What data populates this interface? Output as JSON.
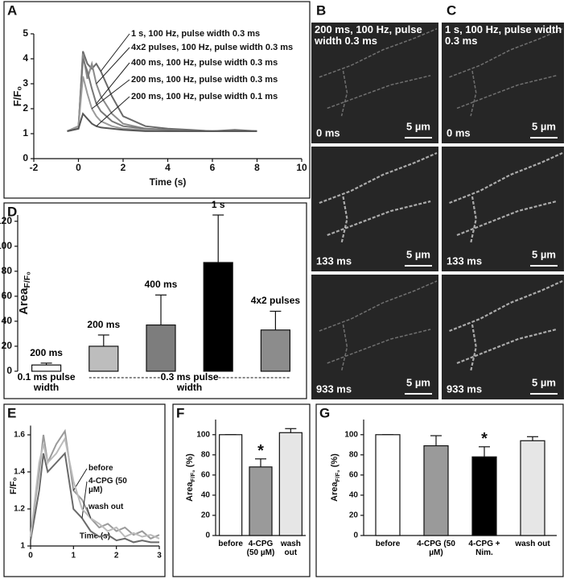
{
  "chart_data": [
    {
      "type": "line",
      "panel_label": "A",
      "xlabel": "Time (s)",
      "ylabel": "F/F₀",
      "xlim": [
        -2,
        10
      ],
      "xticks": [
        -2,
        0,
        2,
        4,
        6,
        8,
        10
      ],
      "ylim": [
        0,
        5
      ],
      "yticks": [
        0,
        1,
        2,
        3,
        4,
        5
      ],
      "x": [
        -0.5,
        0,
        0.2,
        0.4,
        0.6,
        0.8,
        1,
        1.5,
        2,
        3,
        4,
        5,
        6,
        7,
        8
      ],
      "series": [
        {
          "name": "1 s, 100 Hz, pulse width 0.3 ms",
          "color": "#6a6a6a",
          "values": [
            1.1,
            1.2,
            4.3,
            3.8,
            3.6,
            3.8,
            3.5,
            2.5,
            1.7,
            1.3,
            1.2,
            1.15,
            1.1,
            1.15,
            1.1
          ]
        },
        {
          "name": "4x2 pulses, 100 Hz, pulse width 0.3 ms",
          "color": "#8a8a8a",
          "values": [
            1.1,
            1.2,
            4.2,
            3.2,
            3.8,
            3.0,
            2.5,
            1.8,
            1.4,
            1.2,
            1.15,
            1.1,
            1.1,
            1.1,
            1.1
          ]
        },
        {
          "name": "400 ms, 100 Hz, pulse width 0.3 ms",
          "color": "#777777",
          "values": [
            1.1,
            1.3,
            4.0,
            3.5,
            2.8,
            2.2,
            1.9,
            1.5,
            1.3,
            1.2,
            1.15,
            1.1,
            1.1,
            1.1,
            1.1
          ]
        },
        {
          "name": "200 ms, 100 Hz, pulse width 0.3 ms",
          "color": "#9a9a9a",
          "values": [
            1.1,
            1.3,
            3.3,
            2.6,
            2.0,
            1.7,
            1.5,
            1.3,
            1.2,
            1.15,
            1.1,
            1.1,
            1.1,
            1.1,
            1.1
          ]
        },
        {
          "name": "200 ms, 100 Hz, pulse width 0.1 ms",
          "color": "#555555",
          "values": [
            1.1,
            1.2,
            1.8,
            1.6,
            1.4,
            1.3,
            1.25,
            1.2,
            1.15,
            1.1,
            1.1,
            1.1,
            1.1,
            1.1,
            1.1
          ]
        }
      ]
    },
    {
      "type": "bar",
      "panel_label": "D",
      "ylabel": "Area",
      "ylabel_sub": "F/F₀",
      "ylim": [
        0,
        125
      ],
      "yticks": [
        0,
        20,
        40,
        60,
        80,
        100,
        120
      ],
      "categories": [
        "200 ms",
        "200 ms",
        "400 ms",
        "1 s",
        "4x2 pulses"
      ],
      "values": [
        5,
        20,
        37,
        87,
        33
      ],
      "errors": [
        1.5,
        9,
        24,
        38,
        15
      ],
      "colors": [
        "#ffffff",
        "#bdbdbd",
        "#7d7d7d",
        "#000000",
        "#8c8c8c"
      ],
      "group_labels": [
        "0.1 ms pulse width",
        "0.3 ms pulse width"
      ]
    },
    {
      "type": "line",
      "panel_label": "E",
      "xlabel": "Time (s)",
      "ylabel": "F/F₀",
      "xlim": [
        0,
        3
      ],
      "xticks": [
        0,
        1,
        2,
        3
      ],
      "ylim": [
        1,
        1.65
      ],
      "yticks": [
        1,
        1.2,
        1.4,
        1.6
      ],
      "x": [
        0,
        0.2,
        0.3,
        0.4,
        0.6,
        0.8,
        1,
        1.2,
        1.4,
        1.6,
        1.8,
        2,
        2.2,
        2.4,
        2.6,
        2.8,
        3
      ],
      "series": [
        {
          "name": "before",
          "color": "#9a9a9a",
          "values": [
            1.05,
            1.4,
            1.6,
            1.45,
            1.55,
            1.62,
            1.3,
            1.25,
            1.15,
            1.1,
            1.12,
            1.08,
            1.1,
            1.06,
            1.08,
            1.04,
            1.06
          ]
        },
        {
          "name": "4-CPG (50 µM)",
          "color": "#6a6a6a",
          "values": [
            1.03,
            1.3,
            1.5,
            1.4,
            1.45,
            1.5,
            1.2,
            1.15,
            1.08,
            1.05,
            1.06,
            1.03,
            1.04,
            1.02,
            1.03,
            1.02,
            1.02
          ]
        },
        {
          "name": "wash out",
          "color": "#bbbbbb",
          "values": [
            1.05,
            1.45,
            1.55,
            1.45,
            1.5,
            1.58,
            1.35,
            1.2,
            1.15,
            1.12,
            1.08,
            1.1,
            1.05,
            1.07,
            1.05,
            1.06,
            1.04
          ]
        }
      ]
    },
    {
      "type": "bar",
      "panel_label": "F",
      "ylabel": "Area",
      "ylabel_sub": "F/F₀",
      "ylabel_suffix": "(%)",
      "ylim": [
        0,
        115
      ],
      "yticks": [
        0,
        20,
        40,
        60,
        80,
        100
      ],
      "categories": [
        "before",
        "4-CPG (50 µM)",
        "wash out"
      ],
      "values": [
        100,
        68,
        102
      ],
      "errors": [
        0,
        8,
        4
      ],
      "colors": [
        "#ffffff",
        "#9a9a9a",
        "#e6e6e6"
      ],
      "significance": [
        null,
        "*",
        null
      ]
    },
    {
      "type": "bar",
      "panel_label": "G",
      "ylabel": "Area",
      "ylabel_sub": "F/F₀",
      "ylabel_suffix": "(%)",
      "ylim": [
        0,
        115
      ],
      "yticks": [
        0,
        20,
        40,
        60,
        80,
        100
      ],
      "categories": [
        "before",
        "4-CPG (50 µM)",
        "4-CPG + Nim.",
        "wash out"
      ],
      "values": [
        100,
        89,
        78,
        94
      ],
      "errors": [
        0,
        10,
        10,
        4
      ],
      "colors": [
        "#ffffff",
        "#9a9a9a",
        "#000000",
        "#e6e6e6"
      ],
      "significance": [
        null,
        null,
        "*",
        null
      ]
    }
  ],
  "images": [
    {
      "panel_label": "B",
      "caption": "200 ms, 100 Hz, pulse width 0.3 ms",
      "frames": [
        {
          "time": "0 ms",
          "scale": "5 µm"
        },
        {
          "time": "133 ms",
          "scale": "5 µm"
        },
        {
          "time": "933 ms",
          "scale": "5 µm"
        }
      ]
    },
    {
      "panel_label": "C",
      "caption": "1 s, 100 Hz, pulse width 0.3 ms",
      "frames": [
        {
          "time": "0 ms",
          "scale": "5 µm"
        },
        {
          "time": "133 ms",
          "scale": "5 µm"
        },
        {
          "time": "933 ms",
          "scale": "5 µm"
        }
      ]
    }
  ]
}
